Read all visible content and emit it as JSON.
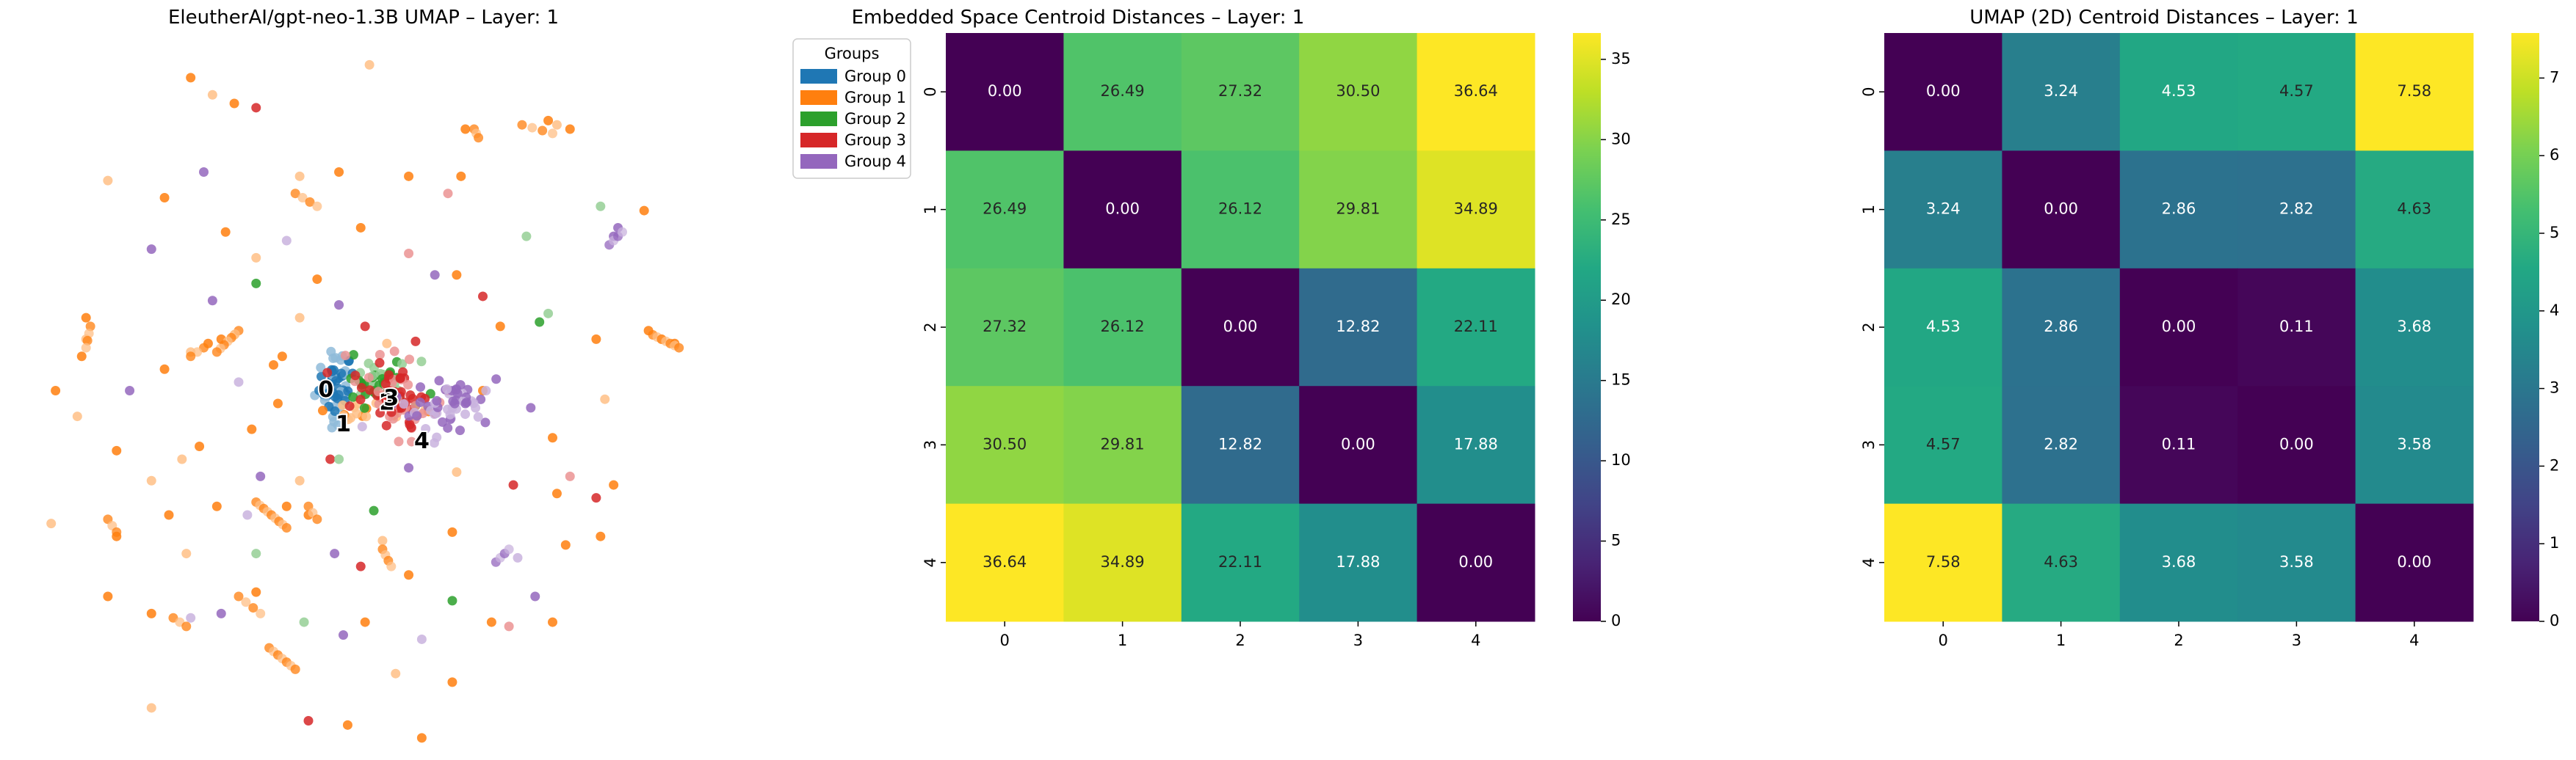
{
  "chart_data": [
    {
      "type": "scatter",
      "title": "EleutherAI/gpt-neo-1.3B UMAP – Layer: 1",
      "legend": {
        "title": "Groups",
        "placement": "top-right",
        "entries": [
          "Group 0",
          "Group 1",
          "Group 2",
          "Group 3",
          "Group 4"
        ]
      },
      "axes_visible": false,
      "xlim": [
        -8,
        8
      ],
      "ylim": [
        -8,
        8
      ],
      "colors": [
        "#1f77b4",
        "#ff7f0e",
        "#2ca02c",
        "#d62728",
        "#9467bd"
      ],
      "light_colors": [
        "#8fbbd9",
        "#ffbf86",
        "#95cf95",
        "#eb9393",
        "#c9b3de"
      ],
      "centroid_labels": [
        {
          "text": "0",
          "x": -1.2,
          "y": 0.0
        },
        {
          "text": "1",
          "x": -0.8,
          "y": -0.8
        },
        {
          "text": "2",
          "x": 0.2,
          "y": -0.3
        },
        {
          "text": "3",
          "x": 0.3,
          "y": -0.2
        },
        {
          "text": "4",
          "x": 1.0,
          "y": -1.2
        }
      ],
      "clusters": [
        {
          "group": 0,
          "cx": -1.0,
          "cy": 0.1,
          "sx": 0.22,
          "sy": 0.4,
          "n": 55
        },
        {
          "group": 1,
          "cx": -0.3,
          "cy": -0.5,
          "sx": 0.55,
          "sy": 0.2,
          "n": 20
        },
        {
          "group": 2,
          "cx": 0.05,
          "cy": 0.2,
          "sx": 0.4,
          "sy": 0.25,
          "n": 45
        },
        {
          "group": 3,
          "cx": 0.4,
          "cy": -0.1,
          "sx": 0.45,
          "sy": 0.45,
          "n": 70
        },
        {
          "group": 4,
          "cx": 1.5,
          "cy": -0.3,
          "sx": 0.55,
          "sy": 0.35,
          "n": 55
        }
      ],
      "points": [
        {
          "g": 1,
          "x": -4.3,
          "y": 7.3
        },
        {
          "g": 1,
          "x": -3.8,
          "y": 6.9
        },
        {
          "g": 1,
          "x": -3.3,
          "y": 6.7
        },
        {
          "g": 3,
          "x": -2.8,
          "y": 6.6
        },
        {
          "g": 1,
          "x": -0.2,
          "y": 7.6
        },
        {
          "g": 1,
          "x": 2.0,
          "y": 6.1
        },
        {
          "g": 1,
          "x": 3.9,
          "y": 6.3
        },
        {
          "g": 1,
          "x": 4.1,
          "y": 6.2
        },
        {
          "g": 1,
          "x": 4.4,
          "y": 6.1
        },
        {
          "g": 1,
          "x": 6.1,
          "y": 4.2
        },
        {
          "g": 2,
          "x": 5.1,
          "y": 4.3
        },
        {
          "g": 4,
          "x": 5.4,
          "y": 3.6
        },
        {
          "g": 4,
          "x": 5.5,
          "y": 3.8
        },
        {
          "g": 1,
          "x": -6.2,
          "y": 4.9
        },
        {
          "g": 1,
          "x": -4.9,
          "y": 4.5
        },
        {
          "g": 4,
          "x": -4.0,
          "y": 5.1
        },
        {
          "g": 1,
          "x": -1.8,
          "y": 5.0
        },
        {
          "g": 1,
          "x": -0.9,
          "y": 5.1
        },
        {
          "g": 1,
          "x": 0.7,
          "y": 5.0
        },
        {
          "g": 3,
          "x": 1.6,
          "y": 4.6
        },
        {
          "g": 1,
          "x": 1.9,
          "y": 5.0
        },
        {
          "g": 1,
          "x": -3.5,
          "y": 3.7
        },
        {
          "g": 1,
          "x": -2.8,
          "y": 3.1
        },
        {
          "g": 2,
          "x": -2.8,
          "y": 2.5
        },
        {
          "g": 4,
          "x": -5.2,
          "y": 3.3
        },
        {
          "g": 4,
          "x": -2.1,
          "y": 3.5
        },
        {
          "g": 1,
          "x": -0.4,
          "y": 3.8
        },
        {
          "g": 1,
          "x": -1.4,
          "y": 2.6
        },
        {
          "g": 3,
          "x": 0.7,
          "y": 3.2
        },
        {
          "g": 4,
          "x": 1.3,
          "y": 2.7
        },
        {
          "g": 1,
          "x": 1.8,
          "y": 2.7
        },
        {
          "g": 2,
          "x": 3.4,
          "y": 3.6
        },
        {
          "g": 3,
          "x": 2.4,
          "y": 2.2
        },
        {
          "g": 4,
          "x": -3.8,
          "y": 2.1
        },
        {
          "g": 1,
          "x": -1.8,
          "y": 1.7
        },
        {
          "g": 3,
          "x": -0.3,
          "y": 1.5
        },
        {
          "g": 4,
          "x": -0.9,
          "y": 2.0
        },
        {
          "g": 1,
          "x": 0.2,
          "y": 1.1
        },
        {
          "g": 1,
          "x": 2.8,
          "y": 1.5
        },
        {
          "g": 2,
          "x": 3.7,
          "y": 1.6
        },
        {
          "g": 2,
          "x": 3.9,
          "y": 1.8
        },
        {
          "g": 1,
          "x": 5.0,
          "y": 1.2
        },
        {
          "g": 1,
          "x": 6.2,
          "y": 1.4
        },
        {
          "g": 1,
          "x": 6.5,
          "y": 1.2
        },
        {
          "g": 1,
          "x": 6.8,
          "y": 1.1
        },
        {
          "g": 1,
          "x": -6.7,
          "y": 1.7
        },
        {
          "g": 1,
          "x": -6.7,
          "y": 1.2
        },
        {
          "g": 1,
          "x": -6.8,
          "y": 0.8
        },
        {
          "g": 1,
          "x": -4.9,
          "y": 0.5
        },
        {
          "g": 1,
          "x": -4.3,
          "y": 0.9
        },
        {
          "g": 1,
          "x": -3.9,
          "y": 1.1
        },
        {
          "g": 1,
          "x": -3.6,
          "y": 1.2
        },
        {
          "g": 1,
          "x": -3.3,
          "y": 1.3
        },
        {
          "g": 1,
          "x": -2.2,
          "y": 0.8
        },
        {
          "g": 1,
          "x": -2.4,
          "y": 0.6
        },
        {
          "g": 4,
          "x": -3.2,
          "y": 0.2
        },
        {
          "g": 4,
          "x": -5.7,
          "y": 0.0
        },
        {
          "g": 1,
          "x": -7.4,
          "y": 0.0
        },
        {
          "g": 1,
          "x": -6.9,
          "y": -0.6
        },
        {
          "g": 1,
          "x": -2.9,
          "y": -0.9
        },
        {
          "g": 1,
          "x": -4.1,
          "y": -1.3
        },
        {
          "g": 1,
          "x": -4.5,
          "y": -1.6
        },
        {
          "g": 1,
          "x": -2.3,
          "y": -0.3
        },
        {
          "g": 3,
          "x": -1.1,
          "y": -1.6
        },
        {
          "g": 2,
          "x": -0.9,
          "y": -1.6
        },
        {
          "g": 1,
          "x": 2.4,
          "y": 0.0
        },
        {
          "g": 4,
          "x": 3.5,
          "y": -0.4
        },
        {
          "g": 1,
          "x": 5.2,
          "y": -0.2
        },
        {
          "g": 1,
          "x": 4.0,
          "y": -1.1
        },
        {
          "g": 1,
          "x": -6.0,
          "y": -1.4
        },
        {
          "g": 1,
          "x": -5.2,
          "y": -2.1
        },
        {
          "g": 1,
          "x": -3.7,
          "y": -2.7
        },
        {
          "g": 4,
          "x": -2.7,
          "y": -2.0
        },
        {
          "g": 1,
          "x": -1.8,
          "y": -2.1
        },
        {
          "g": 4,
          "x": 0.7,
          "y": -1.8
        },
        {
          "g": 2,
          "x": -0.1,
          "y": -2.8
        },
        {
          "g": 1,
          "x": 1.8,
          "y": -1.9
        },
        {
          "g": 3,
          "x": 3.1,
          "y": -2.2
        },
        {
          "g": 1,
          "x": 4.1,
          "y": -2.4
        },
        {
          "g": 3,
          "x": 4.4,
          "y": -2.0
        },
        {
          "g": 3,
          "x": 5.0,
          "y": -2.5
        },
        {
          "g": 1,
          "x": 5.4,
          "y": -2.2
        },
        {
          "g": 1,
          "x": -7.5,
          "y": -3.1
        },
        {
          "g": 1,
          "x": -6.0,
          "y": -3.4
        },
        {
          "g": 1,
          "x": -4.8,
          "y": -2.9
        },
        {
          "g": 4,
          "x": -3.0,
          "y": -2.9
        },
        {
          "g": 1,
          "x": -2.1,
          "y": -2.7
        },
        {
          "g": 1,
          "x": -1.6,
          "y": -2.9
        },
        {
          "g": 2,
          "x": -2.8,
          "y": -3.8
        },
        {
          "g": 4,
          "x": -1.0,
          "y": -3.8
        },
        {
          "g": 3,
          "x": -0.4,
          "y": -4.1
        },
        {
          "g": 1,
          "x": 0.1,
          "y": -3.5
        },
        {
          "g": 1,
          "x": 0.7,
          "y": -4.3
        },
        {
          "g": 1,
          "x": 1.7,
          "y": -3.3
        },
        {
          "g": 4,
          "x": 3.2,
          "y": -3.9
        },
        {
          "g": 1,
          "x": 4.3,
          "y": -3.6
        },
        {
          "g": 1,
          "x": 5.1,
          "y": -3.4
        },
        {
          "g": 1,
          "x": -4.4,
          "y": -3.8
        },
        {
          "g": 1,
          "x": -6.2,
          "y": -4.8
        },
        {
          "g": 1,
          "x": -5.2,
          "y": -5.2
        },
        {
          "g": 4,
          "x": -4.3,
          "y": -5.3
        },
        {
          "g": 4,
          "x": -3.6,
          "y": -5.2
        },
        {
          "g": 1,
          "x": -2.8,
          "y": -4.7
        },
        {
          "g": 2,
          "x": -1.7,
          "y": -5.4
        },
        {
          "g": 4,
          "x": -0.8,
          "y": -5.7
        },
        {
          "g": 1,
          "x": -0.3,
          "y": -5.4
        },
        {
          "g": 4,
          "x": 1.0,
          "y": -5.8
        },
        {
          "g": 2,
          "x": 1.7,
          "y": -4.9
        },
        {
          "g": 1,
          "x": 2.6,
          "y": -5.4
        },
        {
          "g": 3,
          "x": 3.0,
          "y": -5.5
        },
        {
          "g": 4,
          "x": 3.6,
          "y": -4.8
        },
        {
          "g": 1,
          "x": 4.0,
          "y": -5.4
        },
        {
          "g": 1,
          "x": -5.2,
          "y": -7.4
        },
        {
          "g": 3,
          "x": -1.6,
          "y": -7.7
        },
        {
          "g": 1,
          "x": -0.7,
          "y": -7.8
        },
        {
          "g": 1,
          "x": 0.4,
          "y": -6.6
        },
        {
          "g": 1,
          "x": 1.7,
          "y": -6.8
        },
        {
          "g": 1,
          "x": 1.0,
          "y": -8.1
        }
      ],
      "streaks": [
        {
          "g": 1,
          "x1": -3.2,
          "y1": 1.4,
          "x2": -3.7,
          "y2": 0.9,
          "n": 7
        },
        {
          "g": 1,
          "x1": -4.0,
          "y1": 1.0,
          "x2": -4.3,
          "y2": 0.8,
          "n": 3
        },
        {
          "g": 1,
          "x1": 6.3,
          "y1": 1.3,
          "x2": 6.9,
          "y2": 1.0,
          "n": 7
        },
        {
          "g": 1,
          "x1": -2.8,
          "y1": -2.6,
          "x2": -2.1,
          "y2": -3.2,
          "n": 9
        },
        {
          "g": 1,
          "x1": -2.5,
          "y1": -6.0,
          "x2": -1.9,
          "y2": -6.5,
          "n": 7
        },
        {
          "g": 1,
          "x1": -3.2,
          "y1": -4.8,
          "x2": -2.7,
          "y2": -5.2,
          "n": 4
        },
        {
          "g": 1,
          "x1": 0.1,
          "y1": -3.7,
          "x2": 0.3,
          "y2": -4.1,
          "n": 4
        },
        {
          "g": 1,
          "x1": -1.9,
          "y1": 4.6,
          "x2": -1.4,
          "y2": 4.3,
          "n": 4
        },
        {
          "g": 1,
          "x1": 3.3,
          "y1": 6.2,
          "x2": 4.0,
          "y2": 6.0,
          "n": 4
        },
        {
          "g": 1,
          "x1": 2.2,
          "y1": 6.1,
          "x2": 2.3,
          "y2": 5.9,
          "n": 3
        },
        {
          "g": 4,
          "x1": 2.7,
          "y1": -4.0,
          "x2": 3.0,
          "y2": -3.7,
          "n": 4
        },
        {
          "g": 4,
          "x1": 5.3,
          "y1": 3.4,
          "x2": 5.6,
          "y2": 3.7,
          "n": 4
        },
        {
          "g": 1,
          "x1": -6.6,
          "y1": 1.5,
          "x2": -6.7,
          "y2": 1.0,
          "n": 4
        },
        {
          "g": 1,
          "x1": -1.6,
          "y1": -2.7,
          "x2": -1.4,
          "y2": -3.0,
          "n": 3
        },
        {
          "g": 1,
          "x1": -6.2,
          "y1": -3.0,
          "x2": -6.0,
          "y2": -3.3,
          "n": 3
        },
        {
          "g": 1,
          "x1": -4.7,
          "y1": -5.3,
          "x2": -4.4,
          "y2": -5.5,
          "n": 3
        }
      ]
    },
    {
      "type": "heatmap",
      "title": "Embedded Space Centroid Distances – Layer: 1",
      "x_labels": [
        "0",
        "1",
        "2",
        "3",
        "4"
      ],
      "y_labels": [
        "0",
        "1",
        "2",
        "3",
        "4"
      ],
      "values": [
        [
          0.0,
          26.49,
          27.32,
          30.5,
          36.64
        ],
        [
          26.49,
          0.0,
          26.12,
          29.81,
          34.89
        ],
        [
          27.32,
          26.12,
          0.0,
          12.82,
          22.11
        ],
        [
          30.5,
          29.81,
          12.82,
          0.0,
          17.88
        ],
        [
          36.64,
          34.89,
          22.11,
          17.88,
          0.0
        ]
      ],
      "cell_labels": [
        [
          "0.00",
          "26.49",
          "27.32",
          "30.50",
          "36.64"
        ],
        [
          "26.49",
          "0.00",
          "26.12",
          "29.81",
          "34.89"
        ],
        [
          "27.32",
          "26.12",
          "0.00",
          "12.82",
          "22.11"
        ],
        [
          "30.50",
          "29.81",
          "12.82",
          "0.00",
          "17.88"
        ],
        [
          "36.64",
          "34.89",
          "22.11",
          "17.88",
          "0.00"
        ]
      ],
      "colormap": "viridis",
      "vmin": 0,
      "vmax": 36.64,
      "colorbar_ticks": [
        "0",
        "5",
        "10",
        "15",
        "20",
        "25",
        "30",
        "35"
      ],
      "colorbar_tick_values": [
        0,
        5,
        10,
        15,
        20,
        25,
        30,
        35
      ]
    },
    {
      "type": "heatmap",
      "title": "UMAP (2D) Centroid Distances – Layer: 1",
      "x_labels": [
        "0",
        "1",
        "2",
        "3",
        "4"
      ],
      "y_labels": [
        "0",
        "1",
        "2",
        "3",
        "4"
      ],
      "values": [
        [
          0.0,
          3.24,
          4.53,
          4.57,
          7.58
        ],
        [
          3.24,
          0.0,
          2.86,
          2.82,
          4.63
        ],
        [
          4.53,
          2.86,
          0.0,
          0.11,
          3.68
        ],
        [
          4.57,
          2.82,
          0.11,
          0.0,
          3.58
        ],
        [
          7.58,
          4.63,
          3.68,
          3.58,
          0.0
        ]
      ],
      "cell_labels": [
        [
          "0.00",
          "3.24",
          "4.53",
          "4.57",
          "7.58"
        ],
        [
          "3.24",
          "0.00",
          "2.86",
          "2.82",
          "4.63"
        ],
        [
          "4.53",
          "2.86",
          "0.00",
          "0.11",
          "3.68"
        ],
        [
          "4.57",
          "2.82",
          "0.11",
          "0.00",
          "3.58"
        ],
        [
          "7.58",
          "4.63",
          "3.68",
          "3.58",
          "0.00"
        ]
      ],
      "colormap": "viridis",
      "vmin": 0,
      "vmax": 7.58,
      "colorbar_ticks": [
        "0",
        "1",
        "2",
        "3",
        "4",
        "5",
        "6",
        "7"
      ],
      "colorbar_tick_values": [
        0,
        1,
        2,
        3,
        4,
        5,
        6,
        7
      ]
    }
  ]
}
